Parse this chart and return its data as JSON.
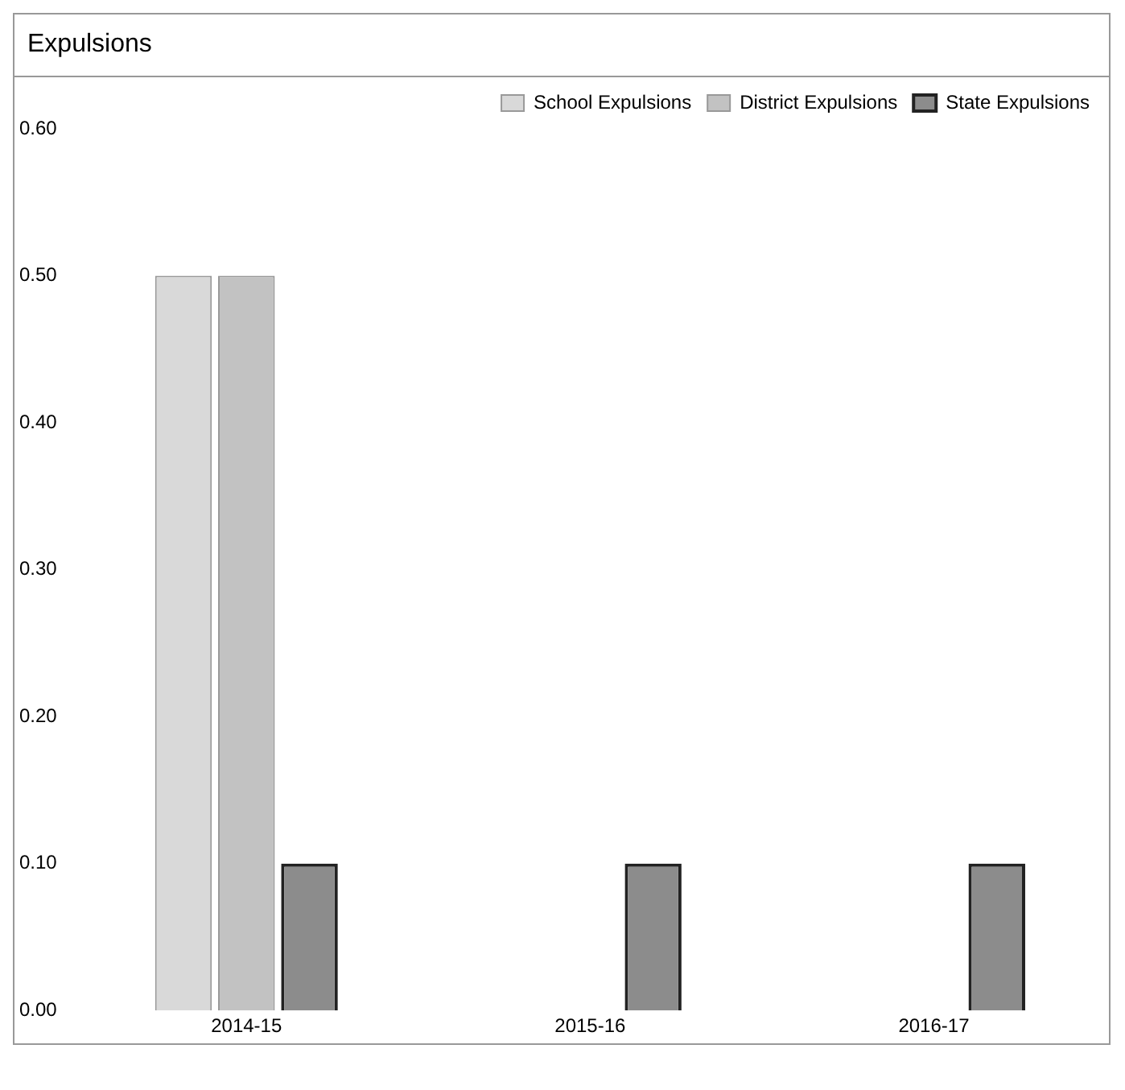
{
  "chart_data": {
    "type": "bar",
    "title": "Expulsions",
    "categories": [
      "2014-15",
      "2015-16",
      "2016-17"
    ],
    "series": [
      {
        "name": "School Expulsions",
        "color": "#d9d9d9",
        "values": [
          0.5,
          0,
          0
        ]
      },
      {
        "name": "District Expulsions",
        "color": "#c2c2c2",
        "values": [
          0.5,
          0,
          0
        ]
      },
      {
        "name": "State Expulsions",
        "color": "#8c8c8c",
        "values": [
          0.1,
          0.1,
          0.1
        ]
      }
    ],
    "ylim": [
      0,
      0.6
    ],
    "yticks": [
      {
        "value": 0,
        "label": "0.00"
      },
      {
        "value": 0.1,
        "label": "0.10"
      },
      {
        "value": 0.2,
        "label": "0.20"
      },
      {
        "value": 0.3,
        "label": "0.30"
      },
      {
        "value": 0.4,
        "label": "0.40"
      },
      {
        "value": 0.5,
        "label": "0.50"
      },
      {
        "value": 0.6,
        "label": "0.60"
      }
    ],
    "grid": false,
    "legend": "top right"
  }
}
